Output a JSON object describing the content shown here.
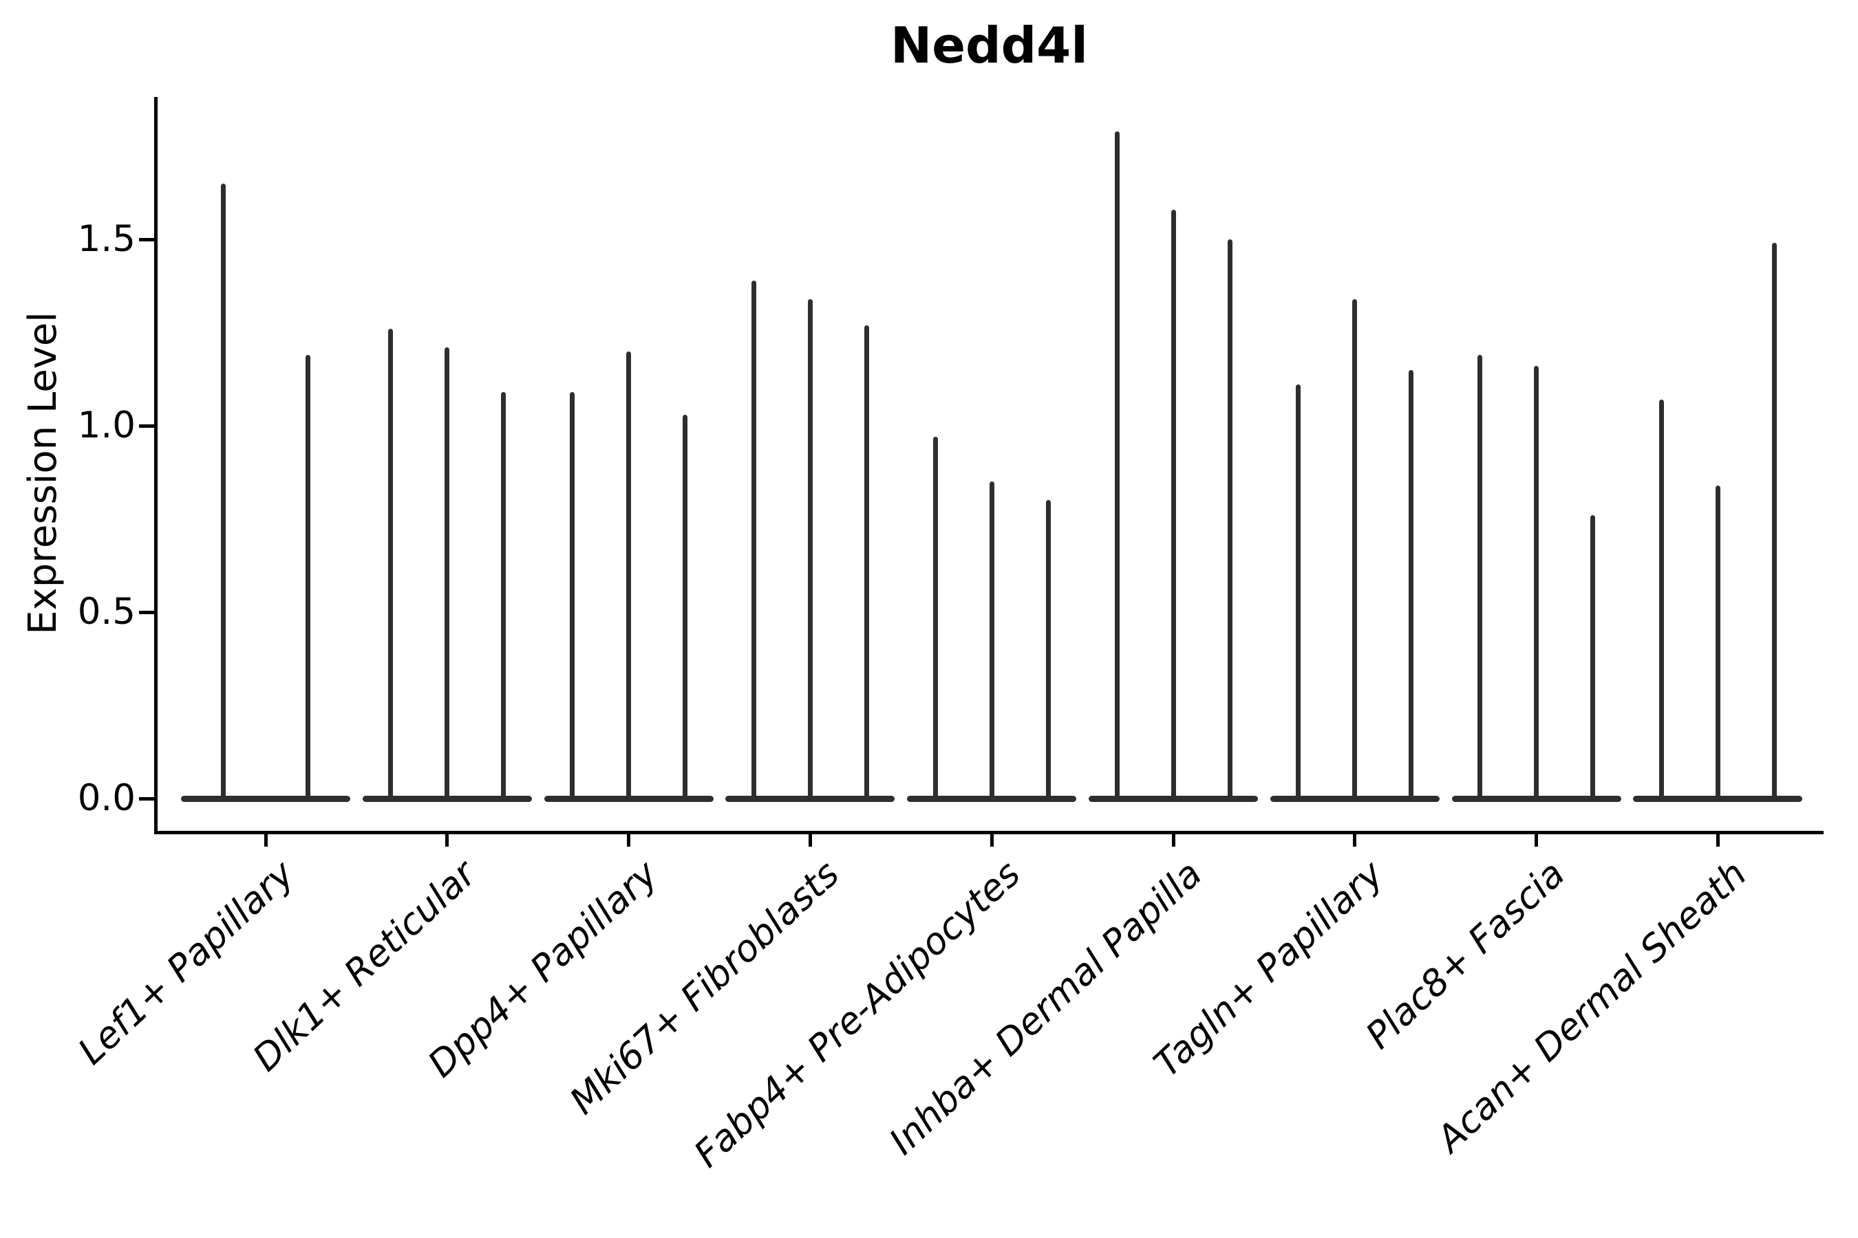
{
  "title": "Nedd4l",
  "y_axis": {
    "label": "Expression Level",
    "ticks": [
      {
        "label": "0.0",
        "value": 0.0
      },
      {
        "label": "0.5",
        "value": 0.5
      },
      {
        "label": "1.0",
        "value": 1.0
      },
      {
        "label": "1.5",
        "value": 1.5
      }
    ]
  },
  "style": {
    "ink": "#2e2e2e",
    "axis": "#000000",
    "background": "#ffffff"
  },
  "chart_data": {
    "type": "violin",
    "title": "Nedd4l",
    "xlabel": "",
    "ylabel": "Expression Level",
    "ylim": [
      -0.09,
      1.88
    ],
    "yticks": [
      0.0,
      0.5,
      1.0,
      1.5
    ],
    "grid": false,
    "legend": false,
    "description": "Violin plot of Nedd4l expression; each category contains multiple narrow violins whose mass sits at 0 (wide flat base) with a thin density spike rising to the maximum expression value.",
    "categories": [
      "Lef1+ Papillary",
      "Dlk1+ Reticular",
      "Dpp4+ Papillary",
      "Mki67+ Fibroblasts",
      "Fabp4+ Pre-Adipocytes",
      "Inhba+ Dermal Papilla",
      "Tagln+ Papillary",
      "Plac8+ Fascia",
      "Acan+ Dermal Sheath"
    ],
    "groups": [
      {
        "category": "Lef1+ Papillary",
        "violin_peaks": [
          1.65,
          1.19
        ]
      },
      {
        "category": "Dlk1+ Reticular",
        "violin_peaks": [
          1.26,
          1.21,
          1.09
        ]
      },
      {
        "category": "Dpp4+ Papillary",
        "violin_peaks": [
          1.09,
          1.2,
          1.03
        ]
      },
      {
        "category": "Mki67+ Fibroblasts",
        "violin_peaks": [
          1.39,
          1.34,
          1.27
        ]
      },
      {
        "category": "Fabp4+ Pre-Adipocytes",
        "violin_peaks": [
          0.97,
          0.85,
          0.8
        ]
      },
      {
        "category": "Inhba+ Dermal Papilla",
        "violin_peaks": [
          1.79,
          1.58,
          1.5
        ]
      },
      {
        "category": "Tagln+ Papillary",
        "violin_peaks": [
          1.11,
          1.34,
          1.15
        ]
      },
      {
        "category": "Plac8+ Fascia",
        "violin_peaks": [
          1.19,
          1.16,
          0.76
        ]
      },
      {
        "category": "Acan+ Dermal Sheath",
        "violin_peaks": [
          1.07,
          0.84,
          1.49
        ]
      }
    ]
  }
}
